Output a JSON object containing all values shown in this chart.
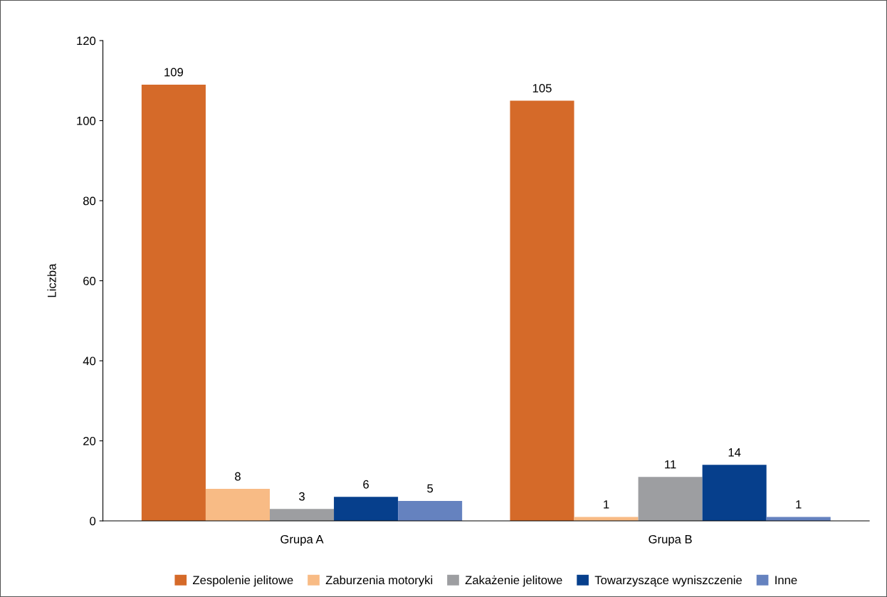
{
  "chart_data": {
    "type": "bar",
    "ylabel": "Liczba",
    "categories": [
      "Grupa A",
      "Grupa B"
    ],
    "series": [
      {
        "name": "Zespolenie jelitowe",
        "color": "#d56a29",
        "values": [
          109,
          105
        ]
      },
      {
        "name": "Zaburzenia motoryki",
        "color": "#f8bb85",
        "values": [
          8,
          1
        ]
      },
      {
        "name": "Zakażenie jelitowe",
        "color": "#9d9ea1",
        "values": [
          3,
          11
        ]
      },
      {
        "name": "Towarzyszące wyniszczenie",
        "color": "#063f8c",
        "values": [
          6,
          14
        ]
      },
      {
        "name": "Inne",
        "color": "#6582bf",
        "values": [
          5,
          1
        ]
      }
    ],
    "ylim": [
      0,
      120
    ],
    "yticks": [
      0,
      20,
      40,
      60,
      80,
      100,
      120
    ],
    "data_labels": true,
    "legend": "bottom",
    "grid": false
  }
}
